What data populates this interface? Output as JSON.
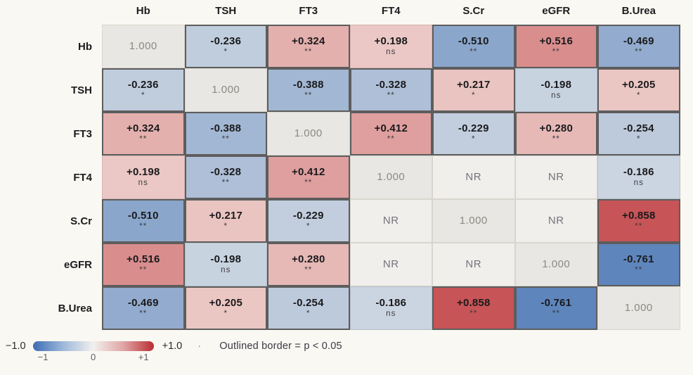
{
  "page": {
    "background": "#faf8f2"
  },
  "chart_data": {
    "type": "heatmap",
    "title": "",
    "variables": [
      "Hb",
      "TSH",
      "FT3",
      "FT4",
      "S.Cr",
      "eGFR",
      "B.Urea"
    ],
    "matrix": [
      {
        "row": "Hb",
        "cells": [
          {
            "kind": "diag",
            "label": "1.000"
          },
          {
            "kind": "val",
            "label": "-0.236",
            "value": -0.236,
            "sig": "*"
          },
          {
            "kind": "val",
            "label": "+0.324",
            "value": 0.324,
            "sig": "**"
          },
          {
            "kind": "val",
            "label": "+0.198",
            "value": 0.198,
            "sig": "ns"
          },
          {
            "kind": "val",
            "label": "-0.510",
            "value": -0.51,
            "sig": "**"
          },
          {
            "kind": "val",
            "label": "+0.516",
            "value": 0.516,
            "sig": "**"
          },
          {
            "kind": "val",
            "label": "-0.469",
            "value": -0.469,
            "sig": "**"
          }
        ]
      },
      {
        "row": "TSH",
        "cells": [
          {
            "kind": "val",
            "label": "-0.236",
            "value": -0.236,
            "sig": "*"
          },
          {
            "kind": "diag",
            "label": "1.000"
          },
          {
            "kind": "val",
            "label": "-0.388",
            "value": -0.388,
            "sig": "**"
          },
          {
            "kind": "val",
            "label": "-0.328",
            "value": -0.328,
            "sig": "**"
          },
          {
            "kind": "val",
            "label": "+0.217",
            "value": 0.217,
            "sig": "*"
          },
          {
            "kind": "val",
            "label": "-0.198",
            "value": -0.198,
            "sig": "ns"
          },
          {
            "kind": "val",
            "label": "+0.205",
            "value": 0.205,
            "sig": "*"
          }
        ]
      },
      {
        "row": "FT3",
        "cells": [
          {
            "kind": "val",
            "label": "+0.324",
            "value": 0.324,
            "sig": "**"
          },
          {
            "kind": "val",
            "label": "-0.388",
            "value": -0.388,
            "sig": "**"
          },
          {
            "kind": "diag",
            "label": "1.000"
          },
          {
            "kind": "val",
            "label": "+0.412",
            "value": 0.412,
            "sig": "**"
          },
          {
            "kind": "val",
            "label": "-0.229",
            "value": -0.229,
            "sig": "*"
          },
          {
            "kind": "val",
            "label": "+0.280",
            "value": 0.28,
            "sig": "**"
          },
          {
            "kind": "val",
            "label": "-0.254",
            "value": -0.254,
            "sig": "*"
          }
        ]
      },
      {
        "row": "FT4",
        "cells": [
          {
            "kind": "val",
            "label": "+0.198",
            "value": 0.198,
            "sig": "ns"
          },
          {
            "kind": "val",
            "label": "-0.328",
            "value": -0.328,
            "sig": "**"
          },
          {
            "kind": "val",
            "label": "+0.412",
            "value": 0.412,
            "sig": "**"
          },
          {
            "kind": "diag",
            "label": "1.000"
          },
          {
            "kind": "nr",
            "label": "NR"
          },
          {
            "kind": "nr",
            "label": "NR"
          },
          {
            "kind": "val",
            "label": "-0.186",
            "value": -0.186,
            "sig": "ns"
          }
        ]
      },
      {
        "row": "S.Cr",
        "cells": [
          {
            "kind": "val",
            "label": "-0.510",
            "value": -0.51,
            "sig": "**"
          },
          {
            "kind": "val",
            "label": "+0.217",
            "value": 0.217,
            "sig": "*"
          },
          {
            "kind": "val",
            "label": "-0.229",
            "value": -0.229,
            "sig": "*"
          },
          {
            "kind": "nr",
            "label": "NR"
          },
          {
            "kind": "diag",
            "label": "1.000"
          },
          {
            "kind": "nr",
            "label": "NR"
          },
          {
            "kind": "val",
            "label": "+0.858",
            "value": 0.858,
            "sig": "**"
          }
        ]
      },
      {
        "row": "eGFR",
        "cells": [
          {
            "kind": "val",
            "label": "+0.516",
            "value": 0.516,
            "sig": "**"
          },
          {
            "kind": "val",
            "label": "-0.198",
            "value": -0.198,
            "sig": "ns"
          },
          {
            "kind": "val",
            "label": "+0.280",
            "value": 0.28,
            "sig": "**"
          },
          {
            "kind": "nr",
            "label": "NR"
          },
          {
            "kind": "nr",
            "label": "NR"
          },
          {
            "kind": "diag",
            "label": "1.000"
          },
          {
            "kind": "val",
            "label": "-0.761",
            "value": -0.761,
            "sig": "**"
          }
        ]
      },
      {
        "row": "B.Urea",
        "cells": [
          {
            "kind": "val",
            "label": "-0.469",
            "value": -0.469,
            "sig": "**"
          },
          {
            "kind": "val",
            "label": "+0.205",
            "value": 0.205,
            "sig": "*"
          },
          {
            "kind": "val",
            "label": "-0.254",
            "value": -0.254,
            "sig": "*"
          },
          {
            "kind": "val",
            "label": "-0.186",
            "value": -0.186,
            "sig": "ns"
          },
          {
            "kind": "val",
            "label": "+0.858",
            "value": 0.858,
            "sig": "**"
          },
          {
            "kind": "val",
            "label": "-0.761",
            "value": -0.761,
            "sig": "**"
          },
          {
            "kind": "diag",
            "label": "1.000"
          }
        ]
      }
    ],
    "value_range": [
      -1.0,
      1.0
    ],
    "colors": {
      "negative_end": "#3567ae",
      "positive_end": "#c03d42",
      "zero": "#faf7f1",
      "diag_bg": "#e9e7e3",
      "diag_text": "#8b8984",
      "nr_bg": "#f1efeb",
      "nr_text": "#75737b",
      "outline": "#5d5d5d",
      "scale_stops": [
        "#3c6cb4",
        "#9db9da",
        "#f2f0ed",
        "#dfa4a6",
        "#ba2d32"
      ]
    }
  },
  "legend": {
    "min_label": "−1.0",
    "max_label": "+1.0",
    "ticks": [
      "−1",
      "0",
      "+1"
    ],
    "separator": "·",
    "note": "Outlined border = p < 0.05"
  }
}
